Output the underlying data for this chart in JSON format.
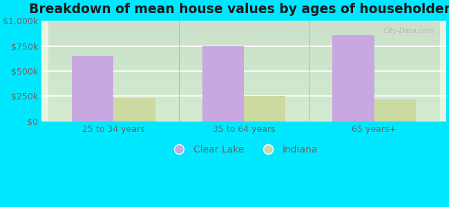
{
  "title": "Breakdown of mean house values by ages of householders",
  "categories": [
    "25 to 34 years",
    "35 to 64 years",
    "65 years+"
  ],
  "clear_lake_values": [
    650000,
    750000,
    860000
  ],
  "indiana_values": [
    230000,
    255000,
    215000
  ],
  "clear_lake_color": "#c8a8e0",
  "indiana_color": "#ccd9a0",
  "ylim": [
    0,
    1000000
  ],
  "yticks": [
    0,
    250000,
    500000,
    750000,
    1000000
  ],
  "ytick_labels": [
    "$0",
    "$250k",
    "$500k",
    "$750k",
    "$1,000k"
  ],
  "background_color": "#00e8ff",
  "plot_bg_color": "#e8f5e0",
  "legend_labels": [
    "Clear Lake",
    "Indiana"
  ],
  "bar_width": 0.32,
  "title_fontsize": 13.5,
  "tick_fontsize": 9,
  "legend_fontsize": 10,
  "grid_color": "#ffffff",
  "tick_color": "#666666"
}
